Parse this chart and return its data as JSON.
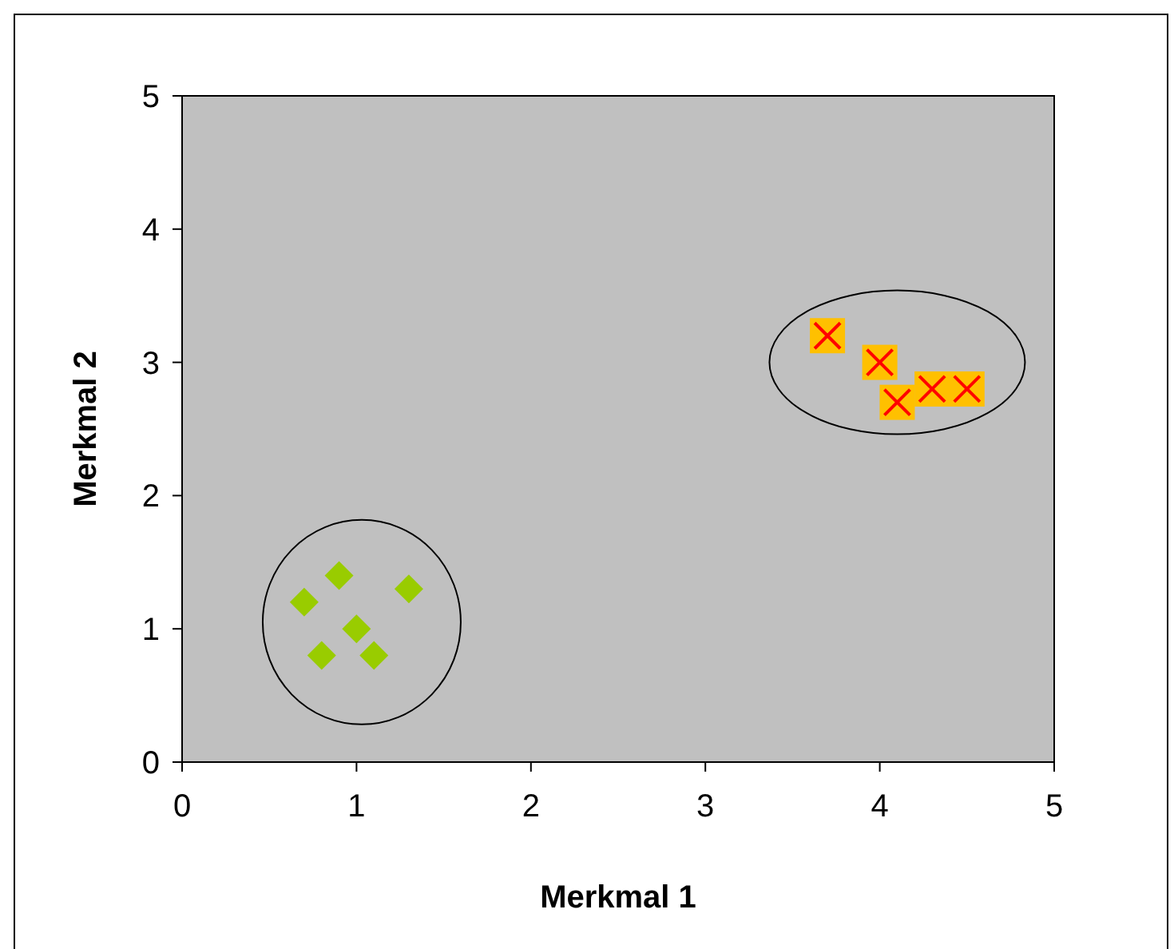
{
  "chart_data": {
    "type": "scatter",
    "xlabel": "Merkmal 1",
    "ylabel": "Merkmal 2",
    "xlim": [
      0,
      5
    ],
    "ylim": [
      0,
      5
    ],
    "xticks": [
      0,
      1,
      2,
      3,
      4,
      5
    ],
    "yticks": [
      0,
      1,
      2,
      3,
      4,
      5
    ],
    "grid": false,
    "series": [
      {
        "color": "#99cc00",
        "marker": "diamond",
        "x": [
          0.7,
          0.9,
          1.3,
          1.0,
          0.8,
          1.1
        ],
        "values": [
          1.2,
          1.4,
          1.3,
          1.0,
          0.8,
          0.8
        ]
      },
      {
        "color": "#ffc000",
        "marker": "square",
        "x": [
          3.7,
          4.0,
          4.1,
          4.3,
          4.5
        ],
        "values": [
          3.2,
          3.0,
          2.7,
          2.8,
          2.8
        ]
      }
    ]
  }
}
